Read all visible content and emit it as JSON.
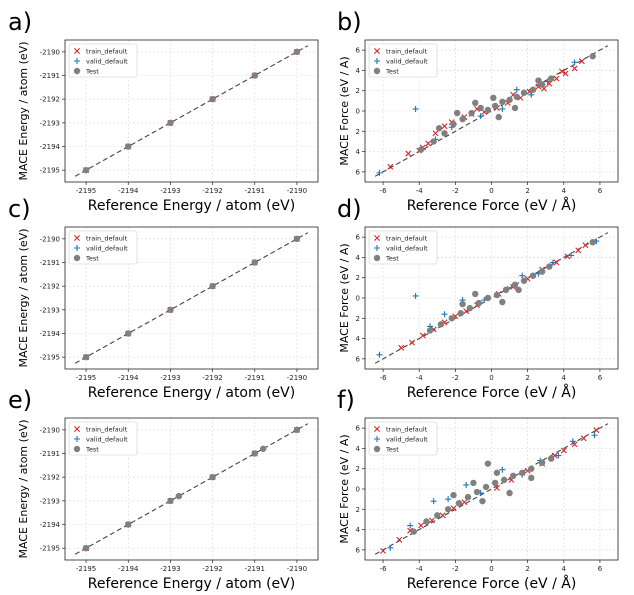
{
  "colors": {
    "train": "#d62728",
    "valid": "#1f77b4",
    "test": "#808080",
    "diagonal": "#444444",
    "grid": "#d9d9d9"
  },
  "chart_data": [
    {
      "panel": "a)",
      "type": "scatter",
      "xlabel": "Reference Energy / atom (eV)",
      "ylabel": "MACE Energy / atom (eV)",
      "xlim": [
        -2195.5,
        -2189.5
      ],
      "ylim": [
        -2195.5,
        -2189.5
      ],
      "xticks": [
        -2195,
        -2194,
        -2193,
        -2192,
        -2191,
        -2190
      ],
      "yticks": [
        -2195,
        -2194,
        -2193,
        -2192,
        -2191,
        -2190
      ],
      "grid": true,
      "legend_position": "top-left",
      "series": [
        {
          "name": "train_default",
          "marker": "x",
          "points": [
            [
              -2195,
              -2195
            ],
            [
              -2194,
              -2194
            ],
            [
              -2193,
              -2193
            ],
            [
              -2192,
              -2192
            ],
            [
              -2191,
              -2191
            ],
            [
              -2190,
              -2190
            ]
          ]
        },
        {
          "name": "valid_default",
          "marker": "+",
          "points": [
            [
              -2194,
              -2194
            ],
            [
              -2192,
              -2192
            ]
          ]
        },
        {
          "name": "Test",
          "marker": "o",
          "points": [
            [
              -2195,
              -2195
            ],
            [
              -2194,
              -2194
            ],
            [
              -2193,
              -2193
            ],
            [
              -2192,
              -2192
            ],
            [
              -2191,
              -2191
            ],
            [
              -2190,
              -2190
            ]
          ]
        }
      ]
    },
    {
      "panel": "b)",
      "type": "scatter",
      "xlabel": "Reference Force (eV / Å)",
      "ylabel": "MACE Force  (eV / A)",
      "xlim": [
        -7,
        7
      ],
      "ylim": [
        -7,
        7
      ],
      "xticks": [
        -6,
        -4,
        -2,
        0,
        2,
        4,
        6
      ],
      "yticks": [
        -6,
        -4,
        -2,
        0,
        2,
        4,
        6
      ],
      "ytick_labels": [
        "6",
        "4",
        "2",
        "0",
        "2",
        "4",
        "6"
      ],
      "grid": true,
      "legend_position": "top-left",
      "series": [
        {
          "name": "train_default",
          "marker": "x",
          "points": [
            [
              -5.6,
              -5.5
            ],
            [
              -4.6,
              -4.2
            ],
            [
              -4,
              -3.9
            ],
            [
              -3.5,
              -3.2
            ],
            [
              -3.1,
              -2.2
            ],
            [
              -2.6,
              -1.5
            ],
            [
              -2.2,
              -1.1
            ],
            [
              -1.5,
              -0.6
            ],
            [
              -0.8,
              0.2
            ],
            [
              -0.4,
              -0.1
            ],
            [
              0.3,
              0.3
            ],
            [
              0.9,
              0.8
            ],
            [
              1.6,
              1.3
            ],
            [
              2.1,
              1.9
            ],
            [
              2.6,
              2.4
            ],
            [
              3.2,
              2.7
            ],
            [
              3.6,
              3.2
            ],
            [
              4.1,
              3.7
            ],
            [
              4.6,
              4.2
            ],
            [
              5,
              4.9
            ],
            [
              3.9,
              3.9
            ],
            [
              2.9,
              2.2
            ],
            [
              1.2,
              1.6
            ],
            [
              -1.1,
              -0.3
            ],
            [
              -3.8,
              -3.6
            ]
          ]
        },
        {
          "name": "valid_default",
          "marker": "+",
          "points": [
            [
              -6.2,
              -6.1
            ],
            [
              -4.2,
              0.2
            ],
            [
              -2.2,
              -1.6
            ],
            [
              -0.6,
              -0.5
            ],
            [
              0.6,
              0.2
            ],
            [
              1.4,
              2.1
            ],
            [
              3.1,
              2.9
            ],
            [
              4.6,
              4.8
            ],
            [
              -3.1,
              -2.8
            ],
            [
              2.2,
              1.6
            ]
          ]
        },
        {
          "name": "Test",
          "marker": "o",
          "points": [
            [
              -3.9,
              -3.8
            ],
            [
              -3.2,
              -3
            ],
            [
              -2.6,
              -2.2
            ],
            [
              -2.1,
              -1.3
            ],
            [
              -1.6,
              -0.8
            ],
            [
              -1.1,
              -0.2
            ],
            [
              -0.6,
              0.3
            ],
            [
              -0.2,
              0.1
            ],
            [
              0.2,
              0.5
            ],
            [
              0.6,
              0.9
            ],
            [
              1,
              1.1
            ],
            [
              1.4,
              1.4
            ],
            [
              1.8,
              1.8
            ],
            [
              2.3,
              2.1
            ],
            [
              2.8,
              2.6
            ],
            [
              3.3,
              3.2
            ],
            [
              -0.9,
              0.8
            ],
            [
              0.4,
              -0.6
            ],
            [
              -1.9,
              -0.2
            ],
            [
              1.3,
              0.3
            ],
            [
              0.1,
              1.3
            ],
            [
              -2.9,
              -1.7
            ],
            [
              2.6,
              3
            ],
            [
              5.6,
              5.4
            ]
          ]
        }
      ]
    },
    {
      "panel": "c)",
      "type": "scatter",
      "xlabel": "Reference Energy / atom (eV)",
      "ylabel": "MACE Energy / atom (eV)",
      "xlim": [
        -2195.5,
        -2189.5
      ],
      "ylim": [
        -2195.5,
        -2189.5
      ],
      "xticks": [
        -2195,
        -2194,
        -2193,
        -2192,
        -2191,
        -2190
      ],
      "yticks": [
        -2195,
        -2194,
        -2193,
        -2192,
        -2191,
        -2190
      ],
      "grid": true,
      "legend_position": "top-left",
      "series": [
        {
          "name": "train_default",
          "marker": "x",
          "points": [
            [
              -2195,
              -2195
            ],
            [
              -2194,
              -2194
            ],
            [
              -2193,
              -2193
            ],
            [
              -2192,
              -2192
            ],
            [
              -2191,
              -2191
            ],
            [
              -2190,
              -2190
            ]
          ]
        },
        {
          "name": "valid_default",
          "marker": "+",
          "points": [
            [
              -2193,
              -2193
            ],
            [
              -2191,
              -2191
            ]
          ]
        },
        {
          "name": "Test",
          "marker": "o",
          "points": [
            [
              -2195,
              -2195
            ],
            [
              -2194,
              -2194
            ],
            [
              -2193,
              -2193
            ],
            [
              -2192,
              -2192
            ],
            [
              -2191,
              -2191
            ],
            [
              -2190,
              -2190
            ]
          ]
        }
      ]
    },
    {
      "panel": "d)",
      "type": "scatter",
      "xlabel": "Reference Force (eV / Å)",
      "ylabel": "MACE Force  (eV / A)",
      "xlim": [
        -7,
        7
      ],
      "ylim": [
        -7,
        7
      ],
      "xticks": [
        -6,
        -4,
        -2,
        0,
        2,
        4,
        6
      ],
      "yticks": [
        -6,
        -4,
        -2,
        0,
        2,
        4,
        6
      ],
      "ytick_labels": [
        "6",
        "4",
        "2",
        "0",
        "2",
        "4",
        "6"
      ],
      "grid": true,
      "legend_position": "top-left",
      "series": [
        {
          "name": "train_default",
          "marker": "x",
          "points": [
            [
              -5,
              -4.9
            ],
            [
              -4.4,
              -4.4
            ],
            [
              -3.8,
              -3.7
            ],
            [
              -3.2,
              -3.1
            ],
            [
              -2.6,
              -2.4
            ],
            [
              -2,
              -1.8
            ],
            [
              -1.4,
              -1.3
            ],
            [
              -0.8,
              -0.7
            ],
            [
              0.4,
              0.4
            ],
            [
              1.2,
              1.1
            ],
            [
              2,
              1.9
            ],
            [
              2.8,
              2.8
            ],
            [
              3.6,
              3.5
            ],
            [
              4.2,
              4.1
            ],
            [
              4.8,
              4.7
            ],
            [
              5.2,
              5.2
            ]
          ]
        },
        {
          "name": "valid_default",
          "marker": "+",
          "points": [
            [
              -6.2,
              -5.6
            ],
            [
              -4.2,
              0.2
            ],
            [
              -2.6,
              -1.6
            ],
            [
              -1.6,
              -0.2
            ],
            [
              -0.4,
              -0.2
            ],
            [
              0.9,
              0.9
            ],
            [
              1.7,
              2.2
            ],
            [
              2.6,
              2.4
            ],
            [
              3.4,
              3.5
            ],
            [
              4.4,
              4.2
            ],
            [
              5.8,
              5.6
            ],
            [
              -3.4,
              -2.8
            ]
          ]
        },
        {
          "name": "Test",
          "marker": "o",
          "points": [
            [
              -3.4,
              -3.2
            ],
            [
              -2.8,
              -2.6
            ],
            [
              -2.2,
              -2
            ],
            [
              -1.7,
              -1.5
            ],
            [
              -1.2,
              -1
            ],
            [
              -0.7,
              -0.5
            ],
            [
              -0.2,
              0
            ],
            [
              0.3,
              0.3
            ],
            [
              0.8,
              0.8
            ],
            [
              1.3,
              1.3
            ],
            [
              1.8,
              1.7
            ],
            [
              2.3,
              2.2
            ],
            [
              2.8,
              2.6
            ],
            [
              3.2,
              3.1
            ],
            [
              -0.9,
              0.4
            ],
            [
              0.6,
              -0.4
            ],
            [
              -1.6,
              -0.6
            ],
            [
              1.5,
              0.8
            ],
            [
              5.6,
              5.5
            ]
          ]
        }
      ]
    },
    {
      "panel": "e)",
      "type": "scatter",
      "xlabel": "Reference Energy / atom (eV)",
      "ylabel": "MACE Energy / atom (eV)",
      "xlim": [
        -2195.5,
        -2189.5
      ],
      "ylim": [
        -2195.5,
        -2189.5
      ],
      "xticks": [
        -2195,
        -2194,
        -2193,
        -2192,
        -2191,
        -2190
      ],
      "yticks": [
        -2195,
        -2194,
        -2193,
        -2192,
        -2191,
        -2190
      ],
      "grid": true,
      "legend_position": "top-left",
      "series": [
        {
          "name": "train_default",
          "marker": "x",
          "points": [
            [
              -2195,
              -2195
            ],
            [
              -2194,
              -2194
            ],
            [
              -2193,
              -2193
            ],
            [
              -2192,
              -2192
            ],
            [
              -2191,
              -2191
            ],
            [
              -2190,
              -2190
            ]
          ]
        },
        {
          "name": "valid_default",
          "marker": "+",
          "points": [
            [
              -2192.8,
              -2192.8
            ],
            [
              -2190.8,
              -2190.8
            ]
          ]
        },
        {
          "name": "Test",
          "marker": "o",
          "points": [
            [
              -2195,
              -2195
            ],
            [
              -2194,
              -2194
            ],
            [
              -2193,
              -2193
            ],
            [
              -2192.8,
              -2192.8
            ],
            [
              -2192,
              -2192
            ],
            [
              -2191,
              -2191
            ],
            [
              -2190.8,
              -2190.8
            ],
            [
              -2190,
              -2190
            ]
          ]
        }
      ]
    },
    {
      "panel": "f)",
      "type": "scatter",
      "xlabel": "Reference Force (eV / Å)",
      "ylabel": "MACE Force  (eV / A)",
      "xlim": [
        -7,
        7
      ],
      "ylim": [
        -7,
        7
      ],
      "xticks": [
        -6,
        -4,
        -2,
        0,
        2,
        4,
        6
      ],
      "yticks": [
        -6,
        -4,
        -2,
        0,
        2,
        4,
        6
      ],
      "ytick_labels": [
        "6",
        "4",
        "2",
        "0",
        "2",
        "4",
        "6"
      ],
      "grid": true,
      "legend_position": "top-left",
      "series": [
        {
          "name": "train_default",
          "marker": "x",
          "points": [
            [
              -6,
              -6.1
            ],
            [
              -5.1,
              -5
            ],
            [
              -4.5,
              -4.1
            ],
            [
              -3.9,
              -3.6
            ],
            [
              -3.3,
              -3.1
            ],
            [
              -2.7,
              -2.6
            ],
            [
              -2.1,
              -1.9
            ],
            [
              -1.5,
              -1.3
            ],
            [
              0.3,
              0.1
            ],
            [
              1.1,
              0.9
            ],
            [
              2,
              1.8
            ],
            [
              2.8,
              2.5
            ],
            [
              3.5,
              3.3
            ],
            [
              4,
              3.8
            ],
            [
              4.6,
              4.4
            ],
            [
              5.1,
              5
            ],
            [
              5.8,
              5.8
            ]
          ]
        },
        {
          "name": "valid_default",
          "marker": "+",
          "points": [
            [
              -5.6,
              -5.8
            ],
            [
              -4.5,
              -3.6
            ],
            [
              -3.2,
              -1.2
            ],
            [
              -2.4,
              -1
            ],
            [
              -1.4,
              0.4
            ],
            [
              -0.6,
              -0.4
            ],
            [
              0.6,
              1.9
            ],
            [
              1.7,
              1.4
            ],
            [
              2.7,
              2.8
            ],
            [
              3.7,
              3.3
            ],
            [
              4.5,
              4.7
            ],
            [
              5.7,
              5.3
            ]
          ]
        },
        {
          "name": "Test",
          "marker": "o",
          "points": [
            [
              -4.3,
              -4.2
            ],
            [
              -3.6,
              -3.2
            ],
            [
              -3,
              -2.6
            ],
            [
              -2.4,
              -2
            ],
            [
              -1.8,
              -1.4
            ],
            [
              -1.3,
              -0.8
            ],
            [
              -0.8,
              -0.3
            ],
            [
              -0.3,
              0.2
            ],
            [
              0.2,
              0.6
            ],
            [
              0.7,
              0.9
            ],
            [
              1.2,
              1.3
            ],
            [
              1.7,
              1.6
            ],
            [
              2.2,
              2
            ],
            [
              2.8,
              2.6
            ],
            [
              3.3,
              3
            ],
            [
              -0.2,
              2.5
            ],
            [
              0.3,
              1.6
            ],
            [
              -1,
              0.6
            ],
            [
              1,
              -0.4
            ],
            [
              -2.1,
              -0.6
            ],
            [
              2.2,
              1.1
            ],
            [
              -0.5,
              -1.2
            ]
          ]
        }
      ]
    }
  ]
}
